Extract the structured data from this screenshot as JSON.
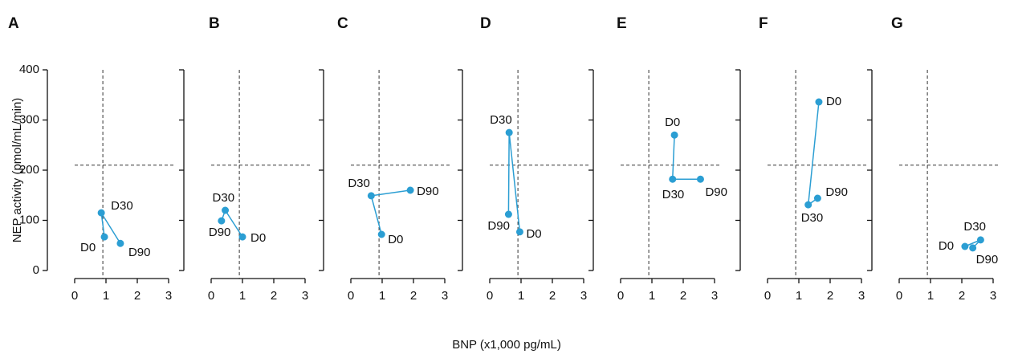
{
  "ylabel": "NEP activity (pmol/mL/min)",
  "xlabel": "BNP (x1,000 pg/mL)",
  "chart_data": [
    {
      "type": "line",
      "title": "A",
      "x": [
        0.95,
        0.85,
        1.46
      ],
      "values": [
        67,
        115,
        54
      ],
      "point_labels": [
        "D0",
        "D30",
        "D90"
      ],
      "color": "#2b9ed3",
      "xlim": [
        0,
        3
      ],
      "xticks": [
        0,
        1,
        2,
        3
      ],
      "ylim": [
        0,
        400
      ],
      "yticks": [
        0,
        100,
        200,
        300,
        400
      ],
      "ytick_labels": true,
      "vline": 0.9,
      "hline": 210
    },
    {
      "type": "line",
      "title": "B",
      "x": [
        1.0,
        0.45,
        0.33
      ],
      "values": [
        67,
        120,
        99
      ],
      "point_labels": [
        "D0",
        "D30",
        "D90"
      ],
      "color": "#2b9ed3",
      "xlim": [
        0,
        3
      ],
      "xticks": [
        0,
        1,
        2,
        3
      ],
      "ylim": [
        0,
        400
      ],
      "yticks": [
        0,
        100,
        200,
        300,
        400
      ],
      "ytick_labels": false,
      "vline": 0.9,
      "hline": 210
    },
    {
      "type": "line",
      "title": "C",
      "x": [
        0.98,
        0.65,
        1.9
      ],
      "values": [
        72,
        149,
        160
      ],
      "point_labels": [
        "D0",
        "D30",
        "D90"
      ],
      "color": "#2b9ed3",
      "xlim": [
        0,
        3
      ],
      "xticks": [
        0,
        1,
        2,
        3
      ],
      "ylim": [
        0,
        400
      ],
      "yticks": [
        0,
        100,
        200,
        300,
        400
      ],
      "ytick_labels": false,
      "vline": 0.9,
      "hline": 210
    },
    {
      "type": "line",
      "title": "D",
      "x": [
        0.96,
        0.62,
        0.6
      ],
      "values": [
        77,
        275,
        112
      ],
      "point_labels": [
        "D0",
        "D30",
        "D90"
      ],
      "color": "#2b9ed3",
      "xlim": [
        0,
        3
      ],
      "xticks": [
        0,
        1,
        2,
        3
      ],
      "ylim": [
        0,
        400
      ],
      "yticks": [
        0,
        100,
        200,
        300,
        400
      ],
      "ytick_labels": false,
      "vline": 0.9,
      "hline": 210
    },
    {
      "type": "line",
      "title": "E",
      "x": [
        1.72,
        1.66,
        2.55
      ],
      "values": [
        270,
        182,
        182
      ],
      "point_labels": [
        "D0",
        "D30",
        "D90"
      ],
      "color": "#2b9ed3",
      "xlim": [
        0,
        3
      ],
      "xticks": [
        0,
        1,
        2,
        3
      ],
      "ylim": [
        0,
        400
      ],
      "yticks": [
        0,
        100,
        200,
        300,
        400
      ],
      "ytick_labels": false,
      "vline": 0.9,
      "hline": 210
    },
    {
      "type": "line",
      "title": "F",
      "x": [
        1.64,
        1.3,
        1.6
      ],
      "values": [
        336,
        131,
        144
      ],
      "point_labels": [
        "D0",
        "D30",
        "D90"
      ],
      "color": "#2b9ed3",
      "xlim": [
        0,
        3
      ],
      "xticks": [
        0,
        1,
        2,
        3
      ],
      "ylim": [
        0,
        400
      ],
      "yticks": [
        0,
        100,
        200,
        300,
        400
      ],
      "ytick_labels": false,
      "vline": 0.9,
      "hline": 210
    },
    {
      "type": "line",
      "title": "G",
      "x": [
        2.1,
        2.6,
        2.35
      ],
      "values": [
        48,
        61,
        45
      ],
      "point_labels": [
        "D0",
        "D30",
        "D90"
      ],
      "color": "#2b9ed3",
      "xlim": [
        0,
        3
      ],
      "xticks": [
        0,
        1,
        2,
        3
      ],
      "ylim": [
        0,
        400
      ],
      "yticks": [
        0,
        100,
        200,
        300,
        400
      ],
      "ytick_labels": false,
      "vline": 0.9,
      "hline": 210
    }
  ]
}
